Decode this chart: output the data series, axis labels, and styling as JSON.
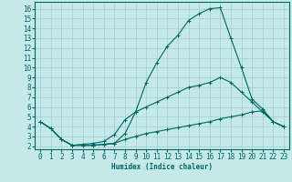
{
  "xlabel": "Humidex (Indice chaleur)",
  "ylabel": "",
  "bg_color": "#c5e8e8",
  "line_color": "#006666",
  "grid_color": "#a0cccc",
  "xlim": [
    -0.5,
    23.5
  ],
  "ylim": [
    1.7,
    16.7
  ],
  "xticks": [
    0,
    1,
    2,
    3,
    4,
    5,
    6,
    7,
    8,
    9,
    10,
    11,
    12,
    13,
    14,
    15,
    16,
    17,
    18,
    19,
    20,
    21,
    22,
    23
  ],
  "yticks": [
    2,
    3,
    4,
    5,
    6,
    7,
    8,
    9,
    10,
    11,
    12,
    13,
    14,
    15,
    16
  ],
  "curve1_x": [
    0,
    1,
    2,
    3,
    4,
    5,
    6,
    7,
    8,
    9,
    10,
    11,
    12,
    13,
    14,
    15,
    16,
    17,
    18,
    19,
    20,
    21,
    22,
    23
  ],
  "curve1_y": [
    4.5,
    3.8,
    2.7,
    2.1,
    2.1,
    2.1,
    2.2,
    2.3,
    3.3,
    5.5,
    8.5,
    10.5,
    12.2,
    13.3,
    14.8,
    15.5,
    16.0,
    16.1,
    13.0,
    10.0,
    6.8,
    5.8,
    4.5,
    4.0
  ],
  "curve2_x": [
    0,
    1,
    2,
    3,
    4,
    5,
    6,
    7,
    8,
    9,
    10,
    11,
    12,
    13,
    14,
    15,
    16,
    17,
    18,
    19,
    20,
    21,
    22,
    23
  ],
  "curve2_y": [
    4.5,
    3.8,
    2.7,
    2.1,
    2.2,
    2.3,
    2.5,
    3.2,
    4.7,
    5.5,
    6.0,
    6.5,
    7.0,
    7.5,
    8.0,
    8.2,
    8.5,
    9.0,
    8.5,
    7.5,
    6.5,
    5.5,
    4.5,
    4.0
  ],
  "curve3_x": [
    0,
    1,
    2,
    3,
    4,
    5,
    6,
    7,
    8,
    9,
    10,
    11,
    12,
    13,
    14,
    15,
    16,
    17,
    18,
    19,
    20,
    21,
    22,
    23
  ],
  "curve3_y": [
    4.5,
    3.8,
    2.7,
    2.1,
    2.1,
    2.1,
    2.2,
    2.3,
    2.7,
    3.0,
    3.3,
    3.5,
    3.7,
    3.9,
    4.1,
    4.3,
    4.5,
    4.8,
    5.0,
    5.2,
    5.5,
    5.6,
    4.5,
    4.0
  ],
  "xlabel_fontsize": 5.5,
  "tick_fontsize": 5.5
}
